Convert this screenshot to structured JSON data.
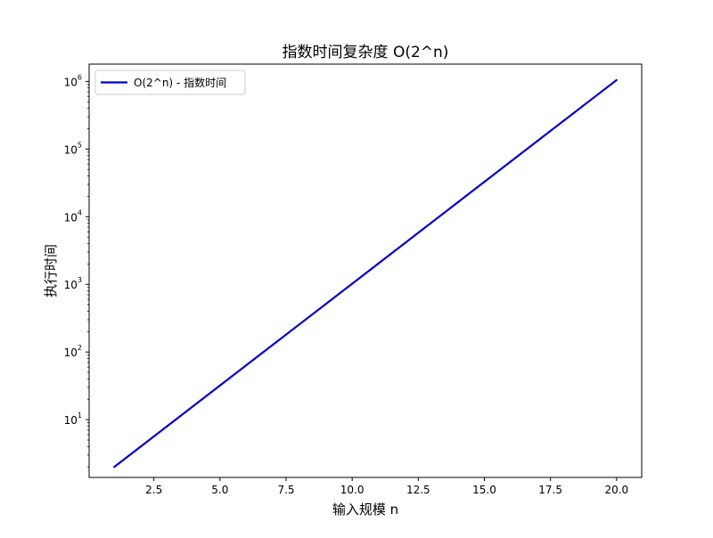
{
  "chart_data": {
    "type": "line",
    "title": "指数时间复杂度 O(2^n)",
    "xlabel": "输入规模 n",
    "ylabel": "执行时间",
    "y_scale": "log",
    "xlim": [
      0.05,
      20.95
    ],
    "ylim": [
      1.4,
      1800000
    ],
    "x_ticks": [
      "2.5",
      "5.0",
      "7.5",
      "10.0",
      "12.5",
      "15.0",
      "17.5",
      "20.0"
    ],
    "y_ticks": [
      {
        "base": "10",
        "exp": "1"
      },
      {
        "base": "10",
        "exp": "2"
      },
      {
        "base": "10",
        "exp": "3"
      },
      {
        "base": "10",
        "exp": "4"
      },
      {
        "base": "10",
        "exp": "5"
      },
      {
        "base": "10",
        "exp": "6"
      }
    ],
    "grid": false,
    "legend_position": "upper-left",
    "series": [
      {
        "name": "O(2^n) - 指数时间",
        "color": "#0000cc",
        "x": [
          1,
          2,
          3,
          4,
          5,
          6,
          7,
          8,
          9,
          10,
          11,
          12,
          13,
          14,
          15,
          16,
          17,
          18,
          19,
          20
        ],
        "y": [
          2,
          4,
          8,
          16,
          32,
          64,
          128,
          256,
          512,
          1024,
          2048,
          4096,
          8192,
          16384,
          32768,
          65536,
          131072,
          262144,
          524288,
          1048576
        ]
      }
    ]
  }
}
